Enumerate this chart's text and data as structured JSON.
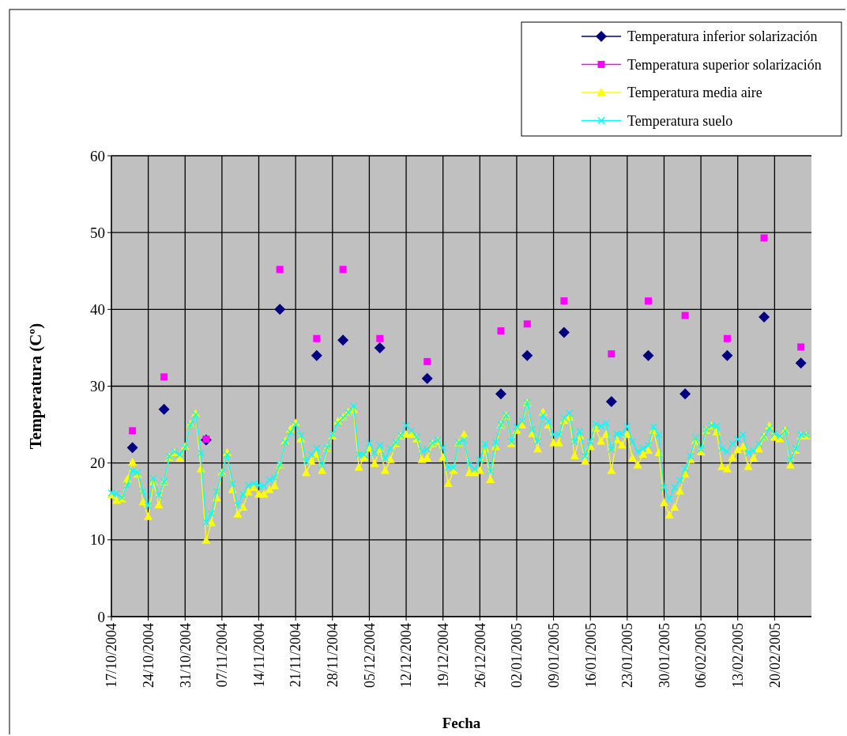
{
  "chart_data": {
    "type": "line",
    "xlabel": "Fecha",
    "ylabel": "Temperatura (Cº)",
    "legend": "top right",
    "grid": true,
    "xlim": [
      "2004-10-17",
      "2005-02-27"
    ],
    "xticks": [
      {
        "value": "2004-10-17",
        "label": "17/10/2004"
      },
      {
        "value": "2004-10-24",
        "label": "24/10/2004"
      },
      {
        "value": "2004-10-31",
        "label": "31/10/2004"
      },
      {
        "value": "2004-11-07",
        "label": "07/11/2004"
      },
      {
        "value": "2004-11-14",
        "label": "14/11/2004"
      },
      {
        "value": "2004-11-21",
        "label": "21/11/2004"
      },
      {
        "value": "2004-11-28",
        "label": "28/11/2004"
      },
      {
        "value": "2004-12-05",
        "label": "05/12/2004"
      },
      {
        "value": "2004-12-12",
        "label": "12/12/2004"
      },
      {
        "value": "2004-12-19",
        "label": "19/12/2004"
      },
      {
        "value": "2004-12-26",
        "label": "26/12/2004"
      },
      {
        "value": "2005-01-02",
        "label": "02/01/2005"
      },
      {
        "value": "2005-01-09",
        "label": "09/01/2005"
      },
      {
        "value": "2005-01-16",
        "label": "16/01/2005"
      },
      {
        "value": "2005-01-23",
        "label": "23/01/2005"
      },
      {
        "value": "2005-01-30",
        "label": "30/01/2005"
      },
      {
        "value": "2005-02-06",
        "label": "06/02/2005"
      },
      {
        "value": "2005-02-13",
        "label": "13/02/2005"
      },
      {
        "value": "2005-02-20",
        "label": "20/02/2005"
      }
    ],
    "ylim": [
      0,
      60
    ],
    "yticks": [
      0,
      10,
      20,
      30,
      40,
      50,
      60
    ],
    "x": [
      "2004-10-17",
      "2004-10-18",
      "2004-10-19",
      "2004-10-20",
      "2004-10-21",
      "2004-10-22",
      "2004-10-23",
      "2004-10-24",
      "2004-10-25",
      "2004-10-26",
      "2004-10-27",
      "2004-10-28",
      "2004-10-29",
      "2004-10-30",
      "2004-10-31",
      "2004-11-01",
      "2004-11-02",
      "2004-11-03",
      "2004-11-04",
      "2004-11-05",
      "2004-11-06",
      "2004-11-07",
      "2004-11-08",
      "2004-11-09",
      "2004-11-10",
      "2004-11-11",
      "2004-11-12",
      "2004-11-13",
      "2004-11-14",
      "2004-11-15",
      "2004-11-16",
      "2004-11-17",
      "2004-11-18",
      "2004-11-19",
      "2004-11-20",
      "2004-11-21",
      "2004-11-22",
      "2004-11-23",
      "2004-11-24",
      "2004-11-25",
      "2004-11-26",
      "2004-11-27",
      "2004-11-28",
      "2004-11-29",
      "2004-11-30",
      "2004-12-01",
      "2004-12-02",
      "2004-12-03",
      "2004-12-04",
      "2004-12-05",
      "2004-12-06",
      "2004-12-07",
      "2004-12-08",
      "2004-12-09",
      "2004-12-10",
      "2004-12-11",
      "2004-12-12",
      "2004-12-13",
      "2004-12-14",
      "2004-12-15",
      "2004-12-16",
      "2004-12-17",
      "2004-12-18",
      "2004-12-19",
      "2004-12-20",
      "2004-12-21",
      "2004-12-22",
      "2004-12-23",
      "2004-12-24",
      "2004-12-25",
      "2004-12-26",
      "2004-12-27",
      "2004-12-28",
      "2004-12-29",
      "2004-12-30",
      "2004-12-31",
      "2005-01-01",
      "2005-01-02",
      "2005-01-03",
      "2005-01-04",
      "2005-01-05",
      "2005-01-06",
      "2005-01-07",
      "2005-01-08",
      "2005-01-09",
      "2005-01-10",
      "2005-01-11",
      "2005-01-12",
      "2005-01-13",
      "2005-01-14",
      "2005-01-15",
      "2005-01-16",
      "2005-01-17",
      "2005-01-18",
      "2005-01-19",
      "2005-01-20",
      "2005-01-21",
      "2005-01-22",
      "2005-01-23",
      "2005-01-24",
      "2005-01-25",
      "2005-01-26",
      "2005-01-27",
      "2005-01-28",
      "2005-01-29",
      "2005-01-30",
      "2005-01-31",
      "2005-02-01",
      "2005-02-02",
      "2005-02-03",
      "2005-02-04",
      "2005-02-05",
      "2005-02-06",
      "2005-02-07",
      "2005-02-08",
      "2005-02-09",
      "2005-02-10",
      "2005-02-11",
      "2005-02-12",
      "2005-02-13",
      "2005-02-14",
      "2005-02-15",
      "2005-02-16",
      "2005-02-17",
      "2005-02-18",
      "2005-02-19",
      "2005-02-20",
      "2005-02-21",
      "2005-02-22",
      "2005-02-23",
      "2005-02-24",
      "2005-02-25",
      "2005-02-26"
    ],
    "series": [
      {
        "name": "Temperatura inferior solarización",
        "type": "scatter",
        "marker": "diamond",
        "color": "#000080",
        "x": [
          "2004-10-21",
          "2004-10-27",
          "2004-11-04",
          "2004-11-18",
          "2004-11-25",
          "2004-11-30",
          "2004-12-07",
          "2004-12-16",
          "2004-12-30",
          "2005-01-04",
          "2005-01-11",
          "2005-01-20",
          "2005-01-27",
          "2005-02-03",
          "2005-02-11",
          "2005-02-18",
          "2005-02-25"
        ],
        "values": [
          22,
          27,
          23,
          40,
          34,
          36,
          35,
          31,
          29,
          34,
          37,
          28,
          34,
          29,
          34,
          39,
          33
        ]
      },
      {
        "name": "Temperatura superior solarización",
        "type": "scatter",
        "marker": "square",
        "color": "#ff00ff",
        "x": [
          "2004-10-21",
          "2004-10-27",
          "2004-11-04",
          "2004-11-18",
          "2004-11-25",
          "2004-11-30",
          "2004-12-07",
          "2004-12-16",
          "2004-12-30",
          "2005-01-04",
          "2005-01-11",
          "2005-01-20",
          "2005-01-27",
          "2005-02-03",
          "2005-02-11",
          "2005-02-18",
          "2005-02-25"
        ],
        "values": [
          24.2,
          31.2,
          23.1,
          45.2,
          36.2,
          45.2,
          36.2,
          33.2,
          37.2,
          38.1,
          41.1,
          34.2,
          41.1,
          39.2,
          36.2,
          49.3,
          35.1
        ]
      },
      {
        "name": "Temperatura media aire",
        "marker": "triangle",
        "color": "#ffff00",
        "values": [
          15.8,
          15.1,
          15.3,
          17.8,
          20.1,
          18.5,
          14.9,
          13.0,
          17.5,
          14.5,
          17.5,
          20.7,
          21.3,
          20.6,
          22.1,
          25.0,
          26.4,
          19.2,
          9.9,
          12.2,
          15.4,
          18.7,
          21.3,
          16.5,
          13.3,
          14.2,
          16.2,
          16.8,
          15.9,
          15.9,
          16.5,
          17.0,
          19.7,
          22.8,
          24.4,
          25.2,
          23.1,
          18.7,
          20.2,
          21.1,
          19.0,
          21.9,
          23.5,
          25.4,
          25.9,
          26.6,
          26.9,
          19.4,
          20.7,
          21.9,
          19.9,
          21.8,
          19.0,
          20.4,
          22.5,
          23.5,
          23.7,
          23.7,
          23.1,
          20.4,
          20.6,
          22.5,
          22.8,
          20.7,
          17.3,
          19.0,
          22.6,
          23.7,
          18.7,
          18.7,
          19.0,
          21.8,
          17.8,
          22.1,
          24.9,
          26.1,
          22.5,
          24.2,
          24.9,
          27.8,
          23.8,
          21.8,
          26.6,
          24.9,
          22.6,
          22.6,
          25.5,
          25.9,
          20.9,
          23.5,
          20.2,
          22.1,
          24.5,
          22.8,
          23.7,
          19.0,
          23.0,
          22.3,
          23.7,
          20.6,
          19.7,
          21.1,
          21.6,
          24.2,
          21.3,
          14.8,
          13.2,
          14.2,
          16.3,
          18.5,
          20.4,
          22.9,
          21.4,
          24.2,
          24.8,
          24.0,
          19.5,
          19.2,
          20.7,
          21.7,
          22.1,
          19.5,
          20.6,
          21.8,
          23.4,
          24.8,
          23.3,
          23.1,
          24.2,
          19.7,
          21.6,
          23.5,
          23.5
        ]
      },
      {
        "name": "Temperatura suelo",
        "marker": "cross",
        "color": "#00ffff",
        "values": [
          16.1,
          16.0,
          15.5,
          17.1,
          19.0,
          18.8,
          16.3,
          14.4,
          18.0,
          15.8,
          17.6,
          20.9,
          21.5,
          21.1,
          22.0,
          25.0,
          26.3,
          21.3,
          12.3,
          13.4,
          16.3,
          18.7,
          21.1,
          17.3,
          14.5,
          15.9,
          17.1,
          17.3,
          17.1,
          17.0,
          17.8,
          18.1,
          19.8,
          22.7,
          24.0,
          25.0,
          23.6,
          20.2,
          21.1,
          21.9,
          19.7,
          22.0,
          23.8,
          25.2,
          25.9,
          26.6,
          27.4,
          21.1,
          21.1,
          22.6,
          21.3,
          22.3,
          20.6,
          21.9,
          22.7,
          23.6,
          24.9,
          24.2,
          23.4,
          21.5,
          21.8,
          22.6,
          23.0,
          22.0,
          19.4,
          19.4,
          22.7,
          23.0,
          19.8,
          19.2,
          20.4,
          22.5,
          18.9,
          22.7,
          25.0,
          26.2,
          22.8,
          24.7,
          25.5,
          27.9,
          24.4,
          22.8,
          26.2,
          25.4,
          23.7,
          23.7,
          25.9,
          26.5,
          22.8,
          24.1,
          20.9,
          22.8,
          25.1,
          24.8,
          25.2,
          21.8,
          23.8,
          23.8,
          24.8,
          22.8,
          21.5,
          21.9,
          22.3,
          24.7,
          23.7,
          16.8,
          15.3,
          16.8,
          17.7,
          19.3,
          20.9,
          23.3,
          21.8,
          24.4,
          24.9,
          24.8,
          21.9,
          21.5,
          22.5,
          23.1,
          23.7,
          21.3,
          21.6,
          22.5,
          23.4,
          24.5,
          23.8,
          23.5,
          24.2,
          20.4,
          21.9,
          23.7,
          23.7
        ]
      }
    ]
  }
}
